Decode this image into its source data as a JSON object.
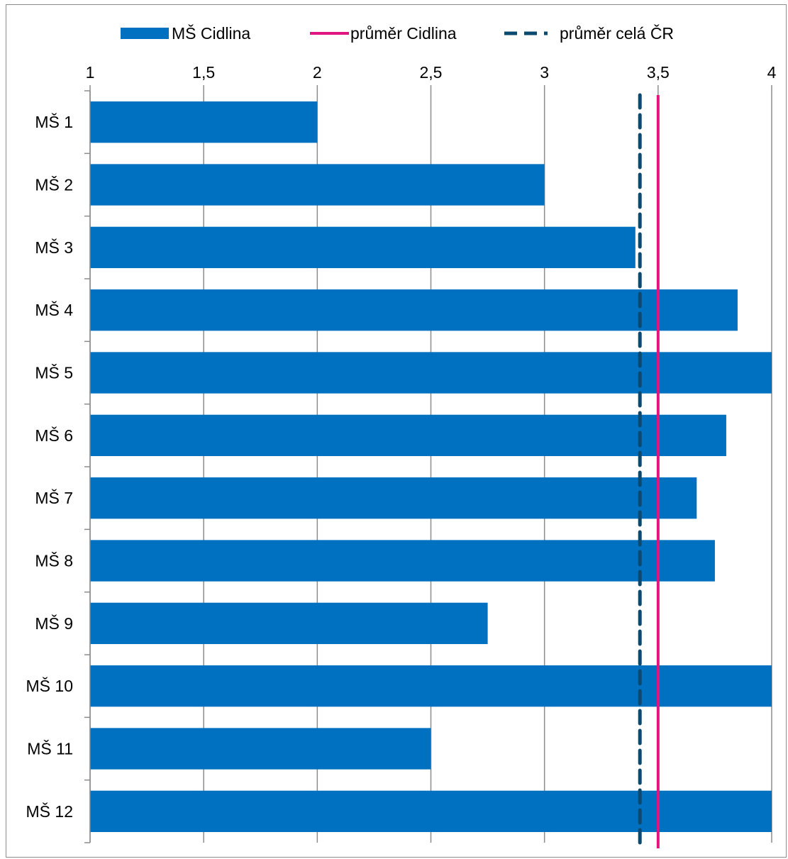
{
  "chart_data": {
    "type": "bar",
    "orientation": "horizontal",
    "categories": [
      "MŠ 1",
      "MŠ 2",
      "MŠ 3",
      "MŠ 4",
      "MŠ 5",
      "MŠ 6",
      "MŠ 7",
      "MŠ 8",
      "MŠ 9",
      "MŠ 10",
      "MŠ 11",
      "MŠ 12"
    ],
    "series": [
      {
        "name": "MŠ Cidlina",
        "values": [
          2.0,
          3.0,
          3.4,
          3.85,
          4.0,
          3.8,
          3.67,
          3.75,
          2.75,
          4.0,
          2.5,
          4.0
        ],
        "color": "#0070c0"
      }
    ],
    "reference_lines": [
      {
        "name": "průměr Cidlina",
        "value": 3.5,
        "color": "#e0157f",
        "style": "solid"
      },
      {
        "name": "průměr celá ČR",
        "value": 3.42,
        "color": "#0b4a6e",
        "style": "dashed"
      }
    ],
    "x_axis": {
      "range": [
        1,
        4
      ],
      "ticks": [
        1,
        1.5,
        2,
        2.5,
        3,
        3.5,
        4
      ],
      "tick_labels": [
        "1",
        "1,5",
        "2",
        "2,5",
        "3",
        "3,5",
        "4"
      ],
      "position": "top"
    },
    "grid": true,
    "legend": "top-center",
    "title": "",
    "xlabel": "",
    "ylabel": ""
  }
}
